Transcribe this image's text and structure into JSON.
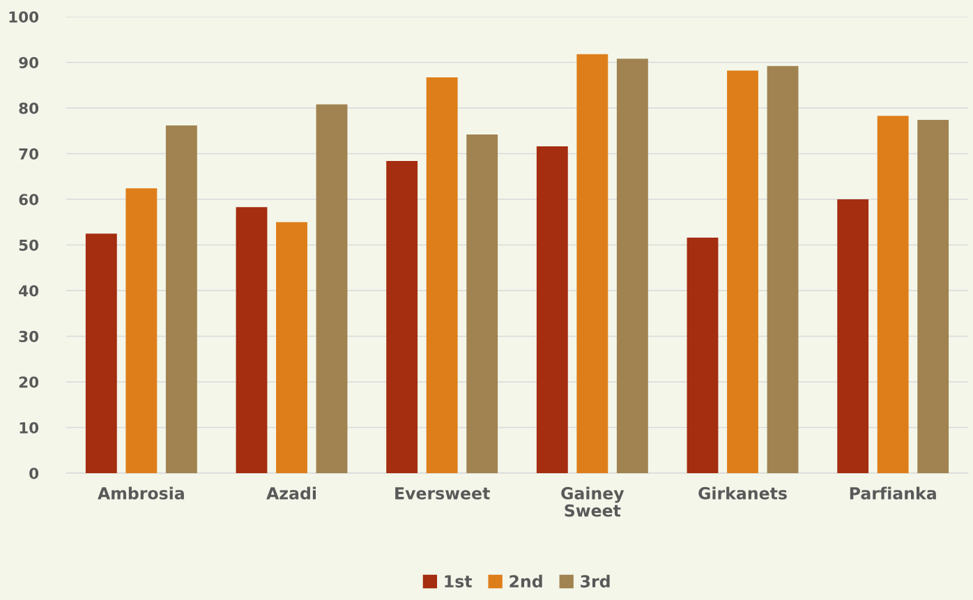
{
  "chart_data": {
    "type": "bar",
    "categories": [
      "Ambrosia",
      "Azadi",
      "Eversweet",
      "Gainey Sweet",
      "Girkanets",
      "Parfianka"
    ],
    "series": [
      {
        "name": "1st",
        "color": "#a52d10",
        "values": [
          52.5,
          58.3,
          68.4,
          71.6,
          51.6,
          60.0
        ]
      },
      {
        "name": "2nd",
        "color": "#de7e1a",
        "values": [
          62.4,
          55.0,
          86.7,
          91.8,
          88.2,
          78.3
        ]
      },
      {
        "name": "3rd",
        "color": "#a08350",
        "values": [
          76.2,
          80.8,
          74.2,
          90.8,
          89.2,
          77.4
        ]
      }
    ],
    "ylim": [
      0,
      100
    ],
    "yticks": [
      0,
      10,
      20,
      30,
      40,
      50,
      60,
      70,
      80,
      90,
      100
    ],
    "grid": "y",
    "legend": "bottom"
  }
}
